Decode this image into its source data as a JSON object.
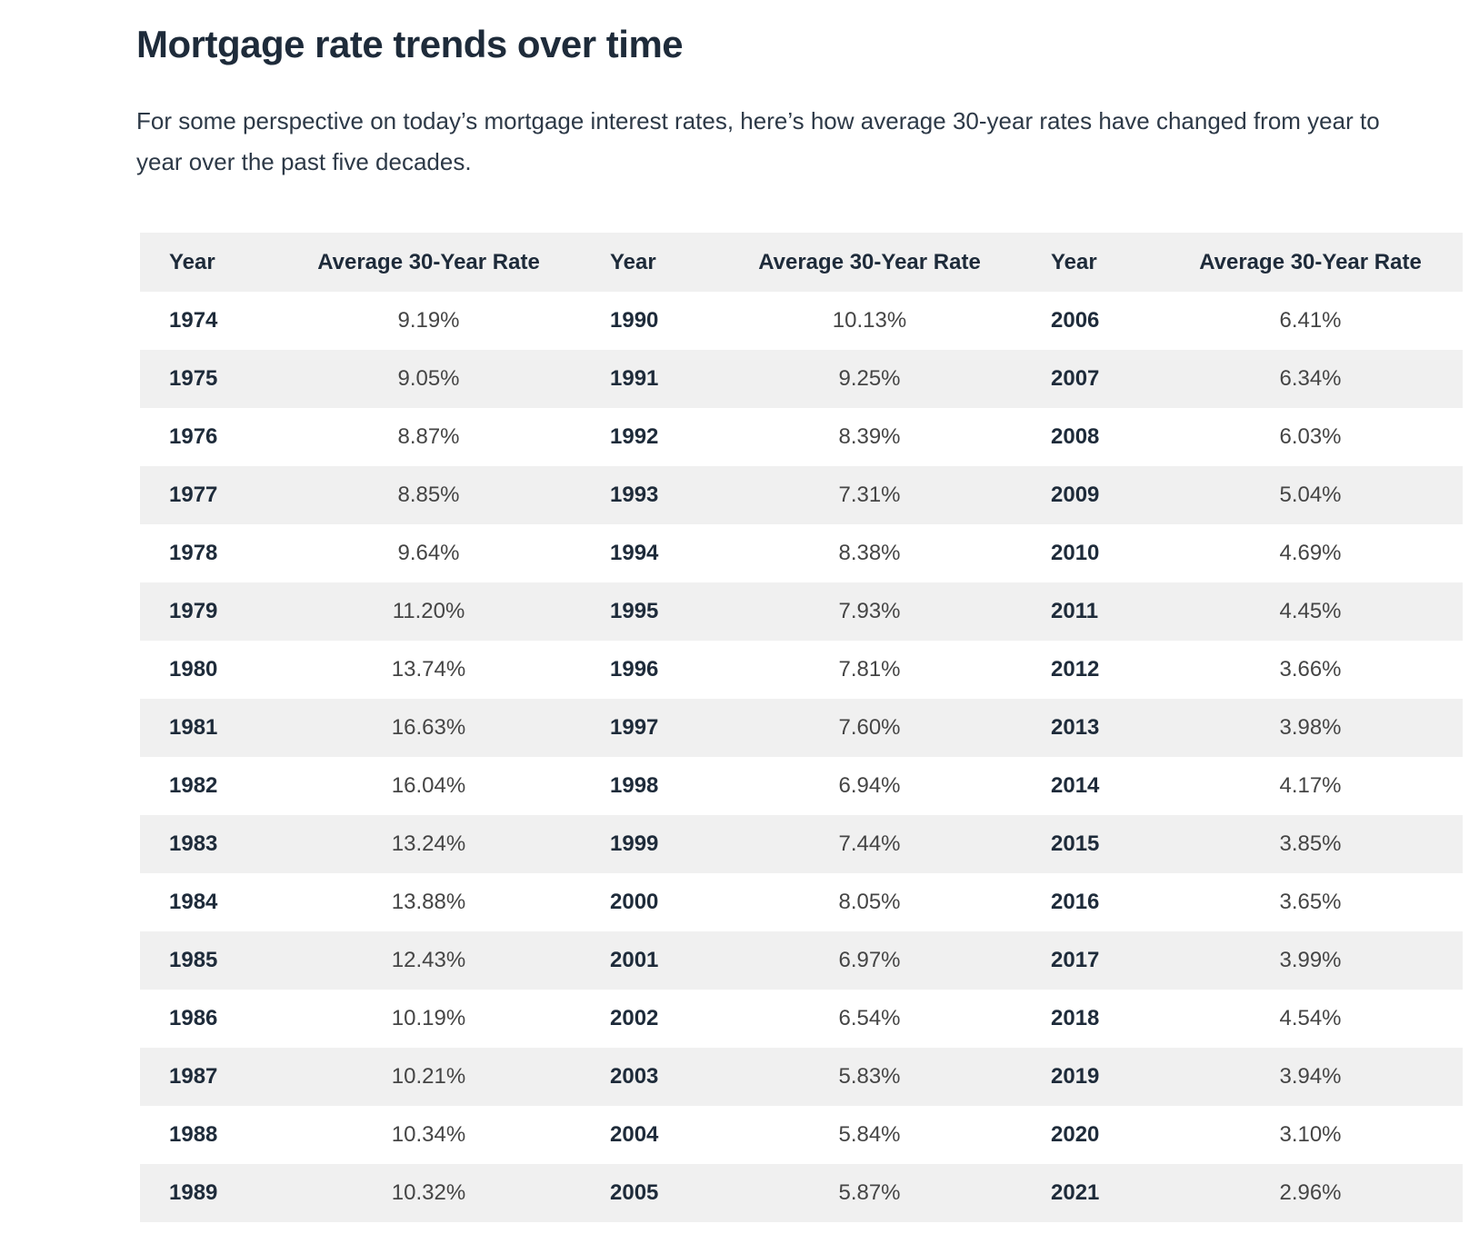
{
  "page": {
    "title": "Mortgage rate trends over time",
    "intro": "For some perspective on today’s mortgage interest rates, here’s how average 30-year rates have changed from year to year over the past five decades."
  },
  "colors": {
    "heading_text": "#1e2b3a",
    "body_text": "#2d3947",
    "rate_text": "#454545",
    "row_stripe": "#f0f0f0",
    "row_white": "#ffffff",
    "page_background": "#ffffff"
  },
  "table": {
    "column_headers": [
      "Year",
      "Average 30-Year Rate",
      "Year",
      "Average 30-Year Rate",
      "Year",
      "Average 30-Year Rate"
    ],
    "rows": [
      [
        "1974",
        "9.19%",
        "1990",
        "10.13%",
        "2006",
        "6.41%"
      ],
      [
        "1975",
        "9.05%",
        "1991",
        "9.25%",
        "2007",
        "6.34%"
      ],
      [
        "1976",
        "8.87%",
        "1992",
        "8.39%",
        "2008",
        "6.03%"
      ],
      [
        "1977",
        "8.85%",
        "1993",
        "7.31%",
        "2009",
        "5.04%"
      ],
      [
        "1978",
        "9.64%",
        "1994",
        "8.38%",
        "2010",
        "4.69%"
      ],
      [
        "1979",
        "11.20%",
        "1995",
        "7.93%",
        "2011",
        "4.45%"
      ],
      [
        "1980",
        "13.74%",
        "1996",
        "7.81%",
        "2012",
        "3.66%"
      ],
      [
        "1981",
        "16.63%",
        "1997",
        "7.60%",
        "2013",
        "3.98%"
      ],
      [
        "1982",
        "16.04%",
        "1998",
        "6.94%",
        "2014",
        "4.17%"
      ],
      [
        "1983",
        "13.24%",
        "1999",
        "7.44%",
        "2015",
        "3.85%"
      ],
      [
        "1984",
        "13.88%",
        "2000",
        "8.05%",
        "2016",
        "3.65%"
      ],
      [
        "1985",
        "12.43%",
        "2001",
        "6.97%",
        "2017",
        "3.99%"
      ],
      [
        "1986",
        "10.19%",
        "2002",
        "6.54%",
        "2018",
        "4.54%"
      ],
      [
        "1987",
        "10.21%",
        "2003",
        "5.83%",
        "2019",
        "3.94%"
      ],
      [
        "1988",
        "10.34%",
        "2004",
        "5.84%",
        "2020",
        "3.10%"
      ],
      [
        "1989",
        "10.32%",
        "2005",
        "5.87%",
        "2021",
        "2.96%"
      ]
    ]
  }
}
